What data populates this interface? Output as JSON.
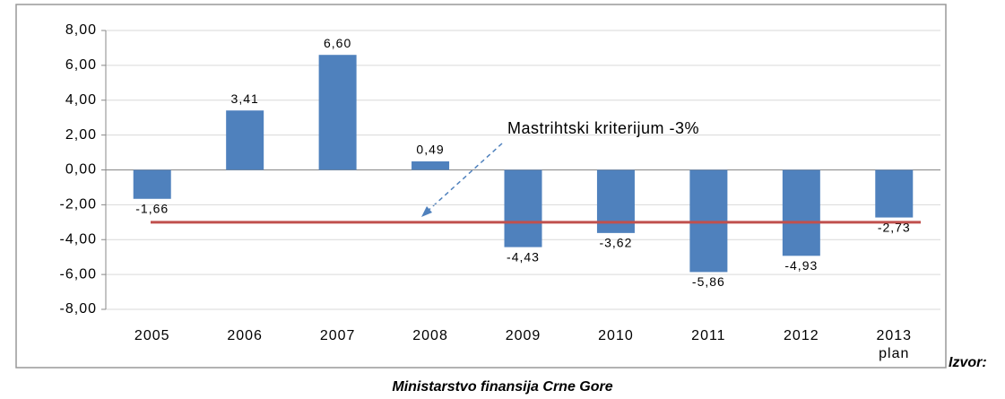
{
  "chart_data": {
    "type": "bar",
    "categories": [
      "2005",
      "2006",
      "2007",
      "2008",
      "2009",
      "2010",
      "2011",
      "2012",
      "2013\nplan"
    ],
    "values": [
      -1.66,
      3.41,
      6.6,
      0.49,
      -4.43,
      -3.62,
      -5.86,
      -4.93,
      -2.73
    ],
    "value_labels": [
      "-1,66",
      "3,41",
      "6,60",
      "0,49",
      "-4,43",
      "-3,62",
      "-5,86",
      "-4,93",
      "-2,73"
    ],
    "color": "#4f81bd",
    "ylim": [
      -8,
      8
    ],
    "yticks": [
      {
        "value": -8,
        "label": "-8,00"
      },
      {
        "value": -6,
        "label": "-6,00"
      },
      {
        "value": -4,
        "label": "-4,00"
      },
      {
        "value": -2,
        "label": "-2,00"
      },
      {
        "value": 0,
        "label": "0,00"
      },
      {
        "value": 2,
        "label": "2,00"
      },
      {
        "value": 4,
        "label": "4,00"
      },
      {
        "value": 6,
        "label": "6,00"
      },
      {
        "value": 8,
        "label": "8,00"
      }
    ],
    "grid": true,
    "reference_line": {
      "value": -3,
      "label": "Mastrihtski kriterijum  -3%",
      "color": "#c0504d"
    }
  },
  "source_label": "Izvor:",
  "source": "Ministarstvo finansija Crne Gore"
}
